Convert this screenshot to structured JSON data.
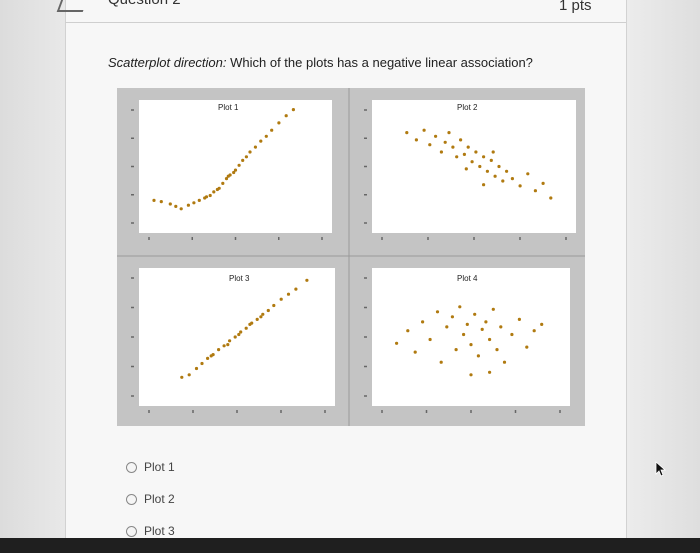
{
  "question": {
    "title": "Question 2",
    "points": "1 pts",
    "prompt_italic": "Scatterplot direction:",
    "prompt_text": " Which of the plots has a negative linear association?"
  },
  "plots": [
    {
      "label": "Plot 1",
      "points": [
        [
          0.05,
          0.22
        ],
        [
          0.09,
          0.21
        ],
        [
          0.14,
          0.19
        ],
        [
          0.17,
          0.17
        ],
        [
          0.2,
          0.15
        ],
        [
          0.24,
          0.18
        ],
        [
          0.27,
          0.2
        ],
        [
          0.3,
          0.22
        ],
        [
          0.33,
          0.24
        ],
        [
          0.36,
          0.26
        ],
        [
          0.38,
          0.29
        ],
        [
          0.41,
          0.32
        ],
        [
          0.43,
          0.36
        ],
        [
          0.45,
          0.4
        ],
        [
          0.47,
          0.43
        ],
        [
          0.5,
          0.47
        ],
        [
          0.52,
          0.51
        ],
        [
          0.54,
          0.55
        ],
        [
          0.56,
          0.58
        ],
        [
          0.58,
          0.62
        ],
        [
          0.61,
          0.66
        ],
        [
          0.64,
          0.71
        ],
        [
          0.67,
          0.75
        ],
        [
          0.7,
          0.8
        ],
        [
          0.74,
          0.86
        ],
        [
          0.78,
          0.92
        ],
        [
          0.82,
          0.97
        ],
        [
          0.34,
          0.25
        ],
        [
          0.4,
          0.31
        ],
        [
          0.46,
          0.42
        ],
        [
          0.49,
          0.45
        ]
      ]
    },
    {
      "label": "Plot 2",
      "points": [
        [
          0.15,
          0.78
        ],
        [
          0.2,
          0.72
        ],
        [
          0.24,
          0.8
        ],
        [
          0.27,
          0.68
        ],
        [
          0.3,
          0.75
        ],
        [
          0.33,
          0.62
        ],
        [
          0.35,
          0.7
        ],
        [
          0.37,
          0.78
        ],
        [
          0.39,
          0.66
        ],
        [
          0.41,
          0.58
        ],
        [
          0.43,
          0.72
        ],
        [
          0.45,
          0.6
        ],
        [
          0.47,
          0.66
        ],
        [
          0.49,
          0.54
        ],
        [
          0.51,
          0.62
        ],
        [
          0.53,
          0.5
        ],
        [
          0.55,
          0.58
        ],
        [
          0.57,
          0.46
        ],
        [
          0.59,
          0.55
        ],
        [
          0.61,
          0.42
        ],
        [
          0.63,
          0.5
        ],
        [
          0.65,
          0.38
        ],
        [
          0.67,
          0.46
        ],
        [
          0.7,
          0.4
        ],
        [
          0.74,
          0.34
        ],
        [
          0.78,
          0.44
        ],
        [
          0.82,
          0.3
        ],
        [
          0.86,
          0.36
        ],
        [
          0.9,
          0.24
        ],
        [
          0.55,
          0.35
        ],
        [
          0.6,
          0.62
        ],
        [
          0.46,
          0.48
        ]
      ]
    },
    {
      "label": "Plot 3",
      "points": [
        [
          0.2,
          0.18
        ],
        [
          0.24,
          0.2
        ],
        [
          0.28,
          0.25
        ],
        [
          0.31,
          0.29
        ],
        [
          0.34,
          0.33
        ],
        [
          0.37,
          0.36
        ],
        [
          0.4,
          0.4
        ],
        [
          0.43,
          0.43
        ],
        [
          0.46,
          0.47
        ],
        [
          0.49,
          0.5
        ],
        [
          0.52,
          0.54
        ],
        [
          0.55,
          0.57
        ],
        [
          0.58,
          0.61
        ],
        [
          0.61,
          0.64
        ],
        [
          0.64,
          0.68
        ],
        [
          0.67,
          0.71
        ],
        [
          0.7,
          0.75
        ],
        [
          0.74,
          0.8
        ],
        [
          0.78,
          0.84
        ],
        [
          0.82,
          0.88
        ],
        [
          0.88,
          0.95
        ],
        [
          0.36,
          0.35
        ],
        [
          0.45,
          0.44
        ],
        [
          0.51,
          0.52
        ],
        [
          0.57,
          0.6
        ],
        [
          0.63,
          0.66
        ]
      ]
    },
    {
      "label": "Plot 4",
      "points": [
        [
          0.1,
          0.45
        ],
        [
          0.16,
          0.55
        ],
        [
          0.2,
          0.38
        ],
        [
          0.24,
          0.62
        ],
        [
          0.28,
          0.48
        ],
        [
          0.32,
          0.7
        ],
        [
          0.34,
          0.3
        ],
        [
          0.37,
          0.58
        ],
        [
          0.4,
          0.66
        ],
        [
          0.42,
          0.4
        ],
        [
          0.44,
          0.74
        ],
        [
          0.46,
          0.52
        ],
        [
          0.48,
          0.6
        ],
        [
          0.5,
          0.44
        ],
        [
          0.52,
          0.68
        ],
        [
          0.54,
          0.35
        ],
        [
          0.56,
          0.56
        ],
        [
          0.58,
          0.62
        ],
        [
          0.6,
          0.48
        ],
        [
          0.62,
          0.72
        ],
        [
          0.64,
          0.4
        ],
        [
          0.66,
          0.58
        ],
        [
          0.68,
          0.3
        ],
        [
          0.72,
          0.52
        ],
        [
          0.76,
          0.64
        ],
        [
          0.8,
          0.42
        ],
        [
          0.84,
          0.55
        ],
        [
          0.88,
          0.6
        ],
        [
          0.5,
          0.2
        ],
        [
          0.6,
          0.22
        ]
      ]
    }
  ],
  "choices": [
    "Plot 1",
    "Plot 2",
    "Plot 3"
  ]
}
